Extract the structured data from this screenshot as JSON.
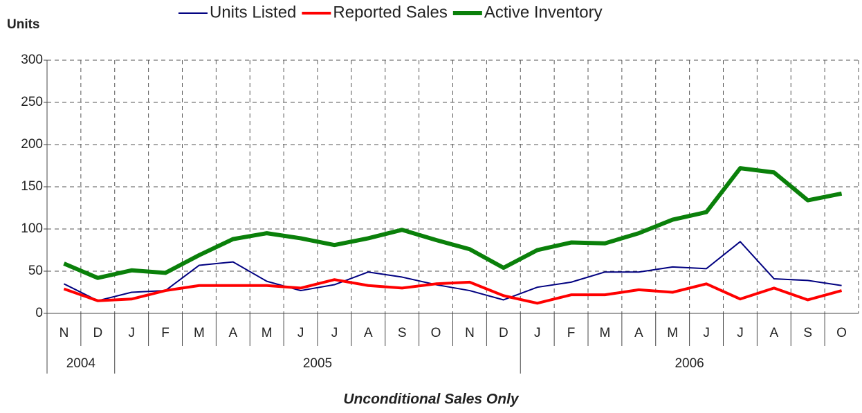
{
  "chart_data": {
    "type": "line",
    "y_label": "Units",
    "footnote": "Unconditional Sales Only",
    "categories": [
      "N",
      "D",
      "J",
      "F",
      "M",
      "A",
      "M",
      "J",
      "J",
      "A",
      "S",
      "O",
      "N",
      "D",
      "J",
      "F",
      "M",
      "A",
      "M",
      "J",
      "J",
      "A",
      "S",
      "O"
    ],
    "x_groups": [
      {
        "label": "2004",
        "span": 2
      },
      {
        "label": "2005",
        "span": 12
      },
      {
        "label": "2006",
        "span": 10
      }
    ],
    "series": [
      {
        "name": "Units Listed",
        "color": "#000080",
        "width": 2,
        "values": [
          35,
          15,
          25,
          27,
          57,
          61,
          38,
          27,
          34,
          49,
          43,
          34,
          27,
          16,
          31,
          37,
          49,
          49,
          55,
          53,
          85,
          41,
          39,
          33
        ]
      },
      {
        "name": "Reported Sales",
        "color": "#ff0000",
        "width": 4,
        "values": [
          29,
          15,
          17,
          27,
          33,
          33,
          33,
          30,
          40,
          33,
          30,
          35,
          37,
          21,
          12,
          22,
          22,
          28,
          25,
          35,
          17,
          30,
          16,
          27
        ]
      },
      {
        "name": "Active Inventory",
        "color": "#0a800a",
        "width": 6,
        "values": [
          59,
          42,
          51,
          48,
          69,
          88,
          95,
          89,
          81,
          89,
          99,
          87,
          76,
          54,
          75,
          84,
          83,
          95,
          111,
          120,
          172,
          167,
          134,
          142
        ]
      }
    ],
    "ylim": [
      0,
      300
    ],
    "yticks": [
      0,
      50,
      100,
      150,
      200,
      250,
      300
    ],
    "grid": true,
    "legend": "top"
  }
}
